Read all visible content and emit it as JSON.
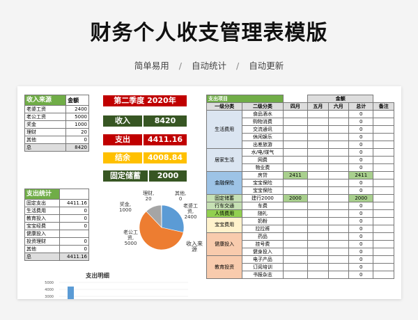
{
  "header": {
    "title": "财务个人收支管理表模版",
    "tags": [
      "简单易用",
      "自动统计",
      "自动更新"
    ],
    "separator": "/"
  },
  "income_table": {
    "headers": [
      "收入来源",
      "金额"
    ],
    "rows": [
      {
        "label": "老婆工资",
        "value": "2400"
      },
      {
        "label": "老公工资",
        "value": "5000"
      },
      {
        "label": "奖金",
        "value": "1000"
      },
      {
        "label": "理财",
        "value": "20"
      },
      {
        "label": "其他",
        "value": "0"
      }
    ],
    "total": {
      "label": "总",
      "value": "8420"
    }
  },
  "spend_table": {
    "header": "支出统计",
    "rows": [
      {
        "label": "固定支出",
        "value": "4411.16"
      },
      {
        "label": "生活费用",
        "value": "0"
      },
      {
        "label": "教育投入",
        "value": "0"
      },
      {
        "label": "宝宝经费",
        "value": "0"
      },
      {
        "label": "健康投入",
        "value": ""
      },
      {
        "label": "投资理财",
        "value": "0"
      },
      {
        "label": "其他",
        "value": "0"
      }
    ],
    "total": {
      "label": "总",
      "value": "4411.16"
    }
  },
  "summary": {
    "period": "第二季度 2020年",
    "income_label": "收入",
    "income_value": "8420",
    "spend_label": "支出",
    "spend_value": "4411.16",
    "balance_label": "结余",
    "balance_value": "4008.84",
    "savings_label": "固定储蓄",
    "savings_value": "2000",
    "colors": {
      "period_bg": "#c00000",
      "income_bg": "#375623",
      "spend_bg": "#c00000",
      "balance_bg": "#ffc000",
      "savings_bg": "#375623"
    }
  },
  "pie": {
    "title": "收入来源",
    "slices": [
      {
        "name": "老婆工资",
        "value": 2400,
        "color": "#5b9bd5",
        "label1": "老婆工",
        "label2": "资,",
        "label3": "2400"
      },
      {
        "name": "老公工资",
        "value": 5000,
        "color": "#ed7d31",
        "label1": "老公工",
        "label2": "资,",
        "label3": "5000"
      },
      {
        "name": "奖金",
        "value": 1000,
        "color": "#a5a5a5",
        "label1": "奖金,",
        "label2": "1000",
        "label3": ""
      },
      {
        "name": "理财",
        "value": 20,
        "color": "#ffc000",
        "label1": "理财,",
        "label2": "20",
        "label3": ""
      },
      {
        "name": "其他",
        "value": 0,
        "color": "#4472c4",
        "label1": "其他,",
        "label2": "0",
        "label3": ""
      }
    ]
  },
  "bar_chart": {
    "title": "支出明细",
    "ticks": [
      "5000",
      "4000",
      "3000"
    ],
    "bars": [
      {
        "value": 4411.16,
        "color": "#5b9bd5"
      }
    ]
  },
  "detail_table": {
    "header": "支出项目",
    "amount_header": "金额",
    "columns": [
      "一级分类",
      "二级分类",
      "四月",
      "五月",
      "六月",
      "总计",
      "备注"
    ],
    "groups": [
      {
        "name": "生活费用",
        "cls": "c-live",
        "rows": [
          {
            "sub": "食品酒水",
            "apr": "",
            "may": "",
            "jun": "",
            "total": "0"
          },
          {
            "sub": "购物消费",
            "apr": "",
            "may": "",
            "jun": "",
            "total": "0"
          },
          {
            "sub": "交流通讯",
            "apr": "",
            "may": "",
            "jun": "",
            "total": "0"
          },
          {
            "sub": "休闲娱乐",
            "apr": "",
            "may": "",
            "jun": "",
            "total": "0"
          },
          {
            "sub": "出差旅游",
            "apr": "",
            "may": "",
            "jun": "",
            "total": "0"
          }
        ]
      },
      {
        "name": "居家生活",
        "cls": "c-home",
        "rows": [
          {
            "sub": "水/电/煤气",
            "apr": "",
            "may": "",
            "jun": "",
            "total": "0"
          },
          {
            "sub": "网费",
            "apr": "",
            "may": "",
            "jun": "",
            "total": "0"
          },
          {
            "sub": "物业费",
            "apr": "",
            "may": "",
            "jun": "",
            "total": "0"
          }
        ]
      },
      {
        "name": "金融保险",
        "cls": "c-fin",
        "rows": [
          {
            "sub": "房贷",
            "apr": "2411",
            "may": "",
            "jun": "",
            "total": "2411",
            "hl": true
          },
          {
            "sub": "宝宝保险",
            "apr": "",
            "may": "",
            "jun": "",
            "total": "0"
          },
          {
            "sub": "宝宝保险",
            "apr": "",
            "may": "",
            "jun": "",
            "total": "0"
          }
        ]
      },
      {
        "name": "固定储蓄",
        "cls": "c-fix",
        "rows": [
          {
            "sub": "建行2000",
            "apr": "2000",
            "may": "",
            "jun": "",
            "total": "2000",
            "hl": true
          }
        ]
      },
      {
        "name": "行车交通",
        "cls": "c-trav",
        "rows": [
          {
            "sub": "车费",
            "apr": "",
            "may": "",
            "jun": "",
            "total": "0"
          }
        ]
      },
      {
        "name": "人情费用",
        "cls": "c-social",
        "rows": [
          {
            "sub": "随礼",
            "apr": "",
            "may": "",
            "jun": "",
            "total": "0"
          }
        ]
      },
      {
        "name": "宝宝费用",
        "cls": "c-baby",
        "rows": [
          {
            "sub": "奶粉",
            "apr": "",
            "may": "",
            "jun": "",
            "total": "0"
          },
          {
            "sub": "拉拉裤",
            "apr": "",
            "may": "",
            "jun": "",
            "total": "0"
          }
        ]
      },
      {
        "name": "健康投入",
        "cls": "c-health",
        "rows": [
          {
            "sub": "药品",
            "apr": "",
            "may": "",
            "jun": "",
            "total": "0"
          },
          {
            "sub": "挂号费",
            "apr": "",
            "may": "",
            "jun": "",
            "total": "0"
          },
          {
            "sub": "健身投入",
            "apr": "",
            "may": "",
            "jun": "",
            "total": "0"
          }
        ]
      },
      {
        "name": "教育投资",
        "cls": "c-edu",
        "rows": [
          {
            "sub": "电子产品",
            "apr": "",
            "may": "",
            "jun": "",
            "total": "0"
          },
          {
            "sub": "订阅培训",
            "apr": "",
            "may": "",
            "jun": "",
            "total": "0"
          },
          {
            "sub": "书报杂志",
            "apr": "",
            "may": "",
            "jun": "",
            "total": "0"
          }
        ]
      }
    ]
  }
}
